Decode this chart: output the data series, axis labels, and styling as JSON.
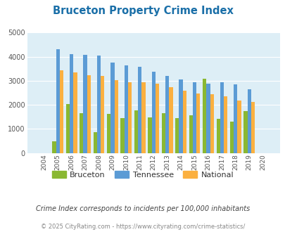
{
  "title": "Bruceton Property Crime Index",
  "years": [
    2004,
    2005,
    2006,
    2007,
    2008,
    2009,
    2010,
    2011,
    2012,
    2013,
    2014,
    2015,
    2016,
    2017,
    2018,
    2019,
    2020
  ],
  "bruceton": [
    0,
    480,
    2020,
    1650,
    860,
    1620,
    1440,
    1780,
    1480,
    1650,
    1450,
    1580,
    3080,
    1430,
    1300,
    1750,
    0
  ],
  "tennessee": [
    0,
    4300,
    4100,
    4080,
    4040,
    3760,
    3650,
    3580,
    3360,
    3190,
    3060,
    2950,
    2880,
    2930,
    2840,
    2640,
    0
  ],
  "national": [
    0,
    3440,
    3340,
    3240,
    3210,
    3030,
    2950,
    2940,
    2880,
    2720,
    2590,
    2480,
    2440,
    2340,
    2180,
    2120,
    0
  ],
  "bruceton_color": "#8ab832",
  "tennessee_color": "#5b9bd5",
  "national_color": "#fbb040",
  "plot_bg_color": "#ddeef6",
  "ylim": [
    0,
    5000
  ],
  "yticks": [
    0,
    1000,
    2000,
    3000,
    4000,
    5000
  ],
  "subtitle": "Crime Index corresponds to incidents per 100,000 inhabitants",
  "footer": "© 2025 CityRating.com - https://www.cityrating.com/crime-statistics/",
  "legend_labels": [
    "Bruceton",
    "Tennessee",
    "National"
  ],
  "title_color": "#1a6fa8",
  "subtitle_color": "#444444",
  "footer_color": "#888888",
  "grid_color": "#ffffff",
  "bar_width": 0.27
}
